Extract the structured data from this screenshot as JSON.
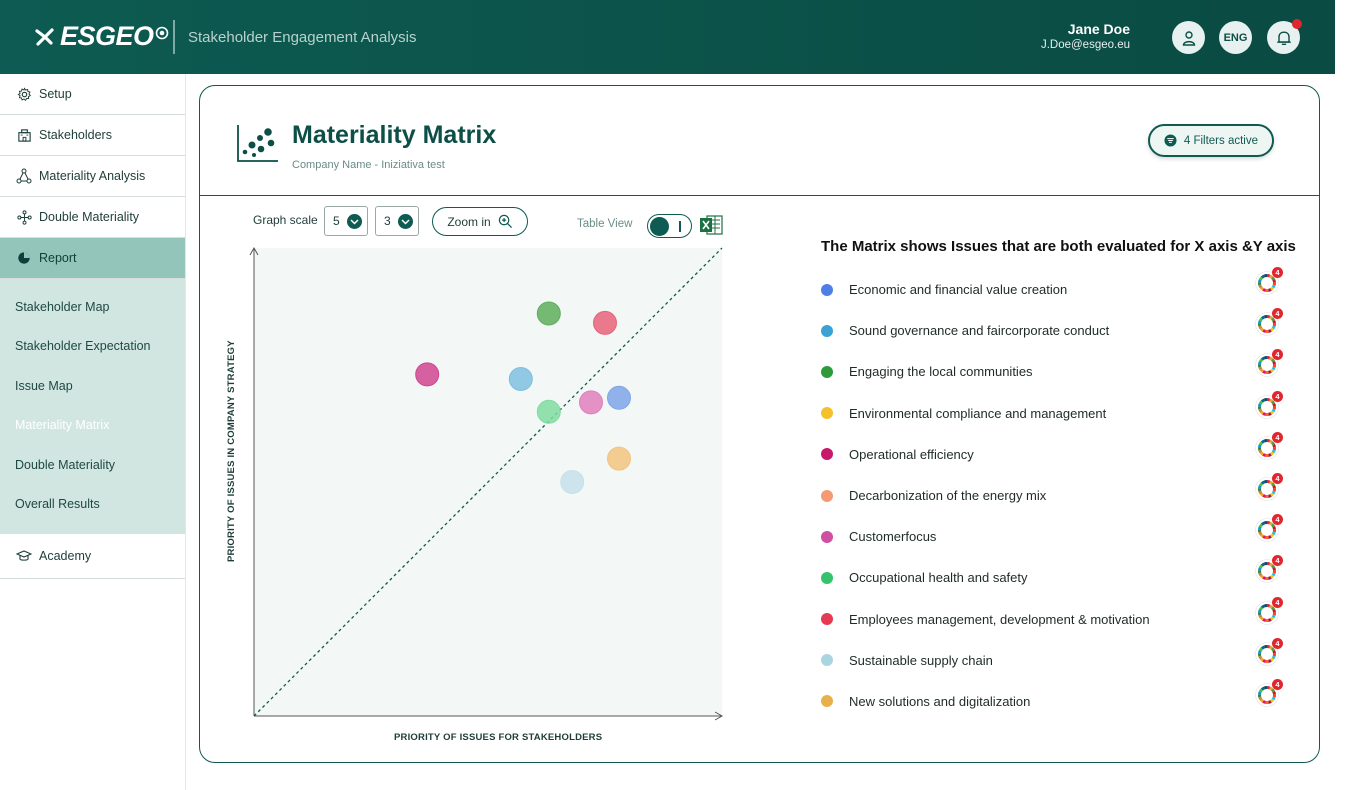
{
  "header": {
    "logo_text": "ESGEO",
    "title": "Stakeholder Engagement Analysis",
    "user_name": "Jane Doe",
    "user_email": "J.Doe@esgeo.eu",
    "language": "ENG"
  },
  "sidebar": {
    "items": [
      {
        "label": "Setup",
        "icon": "gear-icon"
      },
      {
        "label": "Stakeholders",
        "icon": "building-icon"
      },
      {
        "label": "Materiality Analysis",
        "icon": "network-icon"
      },
      {
        "label": "Double Materiality",
        "icon": "nodes-icon"
      },
      {
        "label": "Report",
        "icon": "pie-icon"
      }
    ],
    "report_subitems": [
      "Stakeholder Map",
      "Stakeholder Expectation",
      "Issue Map",
      "Materiality Matrix",
      "Double Materiality",
      "Overall Results"
    ],
    "active_subitem": "Materiality Matrix",
    "academy_label": "Academy"
  },
  "card": {
    "title": "Materiality Matrix",
    "subtitle": "Company Name - Iniziativa test",
    "filters_label": "4 Filters active"
  },
  "controls": {
    "graph_scale_label": "Graph scale",
    "scale_x": "5",
    "scale_y": "3",
    "zoom_label": "Zoom in",
    "table_view_label": "Table View",
    "table_view_on": false
  },
  "chart_data": {
    "type": "scatter",
    "xlabel": "PRIORITY OF ISSUES FOR STAKEHOLDERS",
    "ylabel": "PRIORITY OF ISSUES IN COMPANY STRATEGY",
    "xlim": [
      0,
      1
    ],
    "ylim": [
      0,
      1
    ],
    "diagonal_reference": true,
    "points": [
      {
        "issue": "Engaging the local communities",
        "x": 0.63,
        "y": 0.86,
        "color": "#5fae5c"
      },
      {
        "issue": "Employees management, development & motivation",
        "x": 0.75,
        "y": 0.84,
        "color": "#e8637a"
      },
      {
        "issue": "Operational efficiency",
        "x": 0.37,
        "y": 0.73,
        "color": "#cf4690"
      },
      {
        "issue": "Sound governance and faircorporate conduct",
        "x": 0.57,
        "y": 0.72,
        "color": "#7fbfdf"
      },
      {
        "issue": "Economic and financial value creation",
        "x": 0.78,
        "y": 0.68,
        "color": "#7fa5e8"
      },
      {
        "issue": "Customerfocus",
        "x": 0.72,
        "y": 0.67,
        "color": "#e07fbd"
      },
      {
        "issue": "Occupational health and safety",
        "x": 0.63,
        "y": 0.65,
        "color": "#7fdca0"
      },
      {
        "issue": "New solutions and digitalization",
        "x": 0.78,
        "y": 0.55,
        "color": "#f2c47f"
      },
      {
        "issue": "Sustainable supply chain",
        "x": 0.68,
        "y": 0.5,
        "color": "#c5e0ea"
      }
    ]
  },
  "legend": {
    "title": "The Matrix shows Issues that are both evaluated for X axis &Y axis",
    "sdg_count": "4",
    "items": [
      {
        "label": "Economic and financial value creation",
        "color": "#4f7fe6"
      },
      {
        "label": "Sound governance and faircorporate conduct",
        "color": "#3aa2d4"
      },
      {
        "label": "Engaging the local communities",
        "color": "#2f9a3a"
      },
      {
        "label": "Environmental compliance and management",
        "color": "#f5c12a"
      },
      {
        "label": "Operational efficiency",
        "color": "#c8186b"
      },
      {
        "label": "Decarbonization of the energy mix",
        "color": "#f59a72"
      },
      {
        "label": "Customerfocus",
        "color": "#cf4fa3"
      },
      {
        "label": "Occupational health and safety",
        "color": "#34c26a"
      },
      {
        "label": "Employees management, development & motivation",
        "color": "#e63952"
      },
      {
        "label": "Sustainable supply chain",
        "color": "#a9d5e0"
      },
      {
        "label": "New solutions and digitalization",
        "color": "#e6b04a"
      }
    ]
  }
}
